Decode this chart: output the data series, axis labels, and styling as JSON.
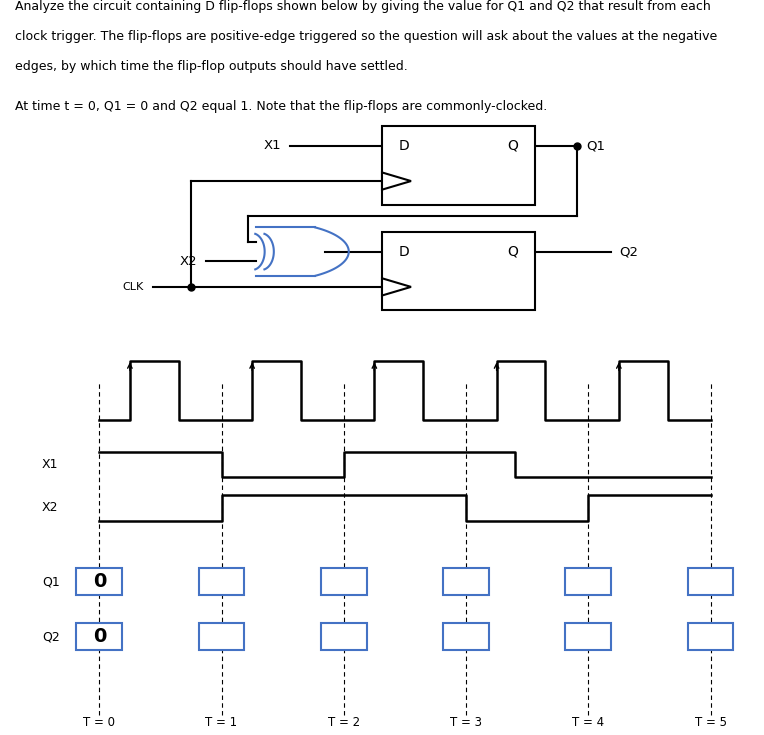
{
  "text_lines": [
    "Analyze the circuit containing D flip-flops shown below by giving the value for Q1 and Q2 that result from each",
    "clock trigger. The flip-flops are positive-edge triggered so the question will ask about the values at the negative",
    "edges, by which time the flip-flop outputs should have settled."
  ],
  "text_line2": "At time t = 0, Q1 = 0 and Q2 equal 1. Note that the flip-flops are commonly-clocked.",
  "bg_color": "#ffffff",
  "text_color": "#000000",
  "t_labels": [
    "T = 0",
    "T = 1",
    "T = 2",
    "T = 3",
    "T = 4",
    "T = 5"
  ],
  "box_color": "#4472c4",
  "xor_color": "#4472c4",
  "lw": 1.5,
  "fontsize_text": 9.0,
  "fontsize_label": 9.0
}
